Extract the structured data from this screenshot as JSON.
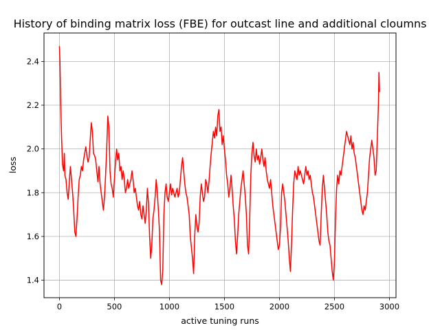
{
  "chart_data": {
    "type": "line",
    "title": "History of binding matrix loss (FBE) for outcast line and additional cloumns",
    "xlabel": "active tuning runs",
    "ylabel": "loss",
    "xlim": [
      -140,
      3060
    ],
    "ylim": [
      1.32,
      2.53
    ],
    "x_ticks": [
      0,
      500,
      1000,
      1500,
      2000,
      2500,
      3000
    ],
    "y_ticks": [
      1.4,
      1.6,
      1.8,
      2.0,
      2.2,
      2.4
    ],
    "x_tick_labels": [
      "0",
      "500",
      "1000",
      "1500",
      "2000",
      "2500",
      "3000"
    ],
    "y_tick_labels": [
      "1.4",
      "1.6",
      "1.8",
      "2.0",
      "2.2",
      "2.4"
    ],
    "grid": true,
    "legend": "none",
    "series": [
      {
        "color": "#ff0000",
        "points": [
          [
            0,
            2.47
          ],
          [
            5,
            2.4
          ],
          [
            12,
            2.2
          ],
          [
            20,
            2.05
          ],
          [
            28,
            1.93
          ],
          [
            38,
            1.9
          ],
          [
            45,
            1.98
          ],
          [
            50,
            1.88
          ],
          [
            60,
            1.86
          ],
          [
            70,
            1.8
          ],
          [
            80,
            1.77
          ],
          [
            90,
            1.85
          ],
          [
            100,
            1.92
          ],
          [
            110,
            1.86
          ],
          [
            120,
            1.8
          ],
          [
            130,
            1.72
          ],
          [
            140,
            1.62
          ],
          [
            150,
            1.6
          ],
          [
            160,
            1.68
          ],
          [
            170,
            1.78
          ],
          [
            180,
            1.86
          ],
          [
            190,
            1.88
          ],
          [
            200,
            1.92
          ],
          [
            210,
            1.9
          ],
          [
            220,
            1.95
          ],
          [
            230,
            1.98
          ],
          [
            240,
            2.01
          ],
          [
            250,
            1.97
          ],
          [
            260,
            1.94
          ],
          [
            270,
            1.96
          ],
          [
            280,
            2.04
          ],
          [
            290,
            2.12
          ],
          [
            300,
            2.08
          ],
          [
            310,
            1.98
          ],
          [
            320,
            1.97
          ],
          [
            330,
            1.95
          ],
          [
            340,
            1.9
          ],
          [
            350,
            1.85
          ],
          [
            360,
            1.92
          ],
          [
            370,
            1.84
          ],
          [
            380,
            1.8
          ],
          [
            390,
            1.76
          ],
          [
            400,
            1.72
          ],
          [
            410,
            1.78
          ],
          [
            420,
            1.88
          ],
          [
            430,
            2.0
          ],
          [
            440,
            2.15
          ],
          [
            450,
            2.1
          ],
          [
            460,
            1.9
          ],
          [
            470,
            1.84
          ],
          [
            480,
            1.82
          ],
          [
            490,
            1.78
          ],
          [
            500,
            1.86
          ],
          [
            510,
            1.94
          ],
          [
            520,
            2.0
          ],
          [
            530,
            1.95
          ],
          [
            540,
            1.98
          ],
          [
            550,
            1.9
          ],
          [
            560,
            1.92
          ],
          [
            570,
            1.86
          ],
          [
            580,
            1.9
          ],
          [
            590,
            1.86
          ],
          [
            600,
            1.8
          ],
          [
            610,
            1.82
          ],
          [
            620,
            1.86
          ],
          [
            630,
            1.82
          ],
          [
            640,
            1.84
          ],
          [
            650,
            1.86
          ],
          [
            660,
            1.9
          ],
          [
            670,
            1.86
          ],
          [
            680,
            1.8
          ],
          [
            690,
            1.82
          ],
          [
            700,
            1.78
          ],
          [
            710,
            1.74
          ],
          [
            720,
            1.72
          ],
          [
            730,
            1.76
          ],
          [
            740,
            1.7
          ],
          [
            750,
            1.68
          ],
          [
            760,
            1.74
          ],
          [
            770,
            1.7
          ],
          [
            780,
            1.66
          ],
          [
            790,
            1.72
          ],
          [
            800,
            1.82
          ],
          [
            810,
            1.75
          ],
          [
            820,
            1.6
          ],
          [
            830,
            1.5
          ],
          [
            840,
            1.56
          ],
          [
            850,
            1.68
          ],
          [
            860,
            1.72
          ],
          [
            870,
            1.78
          ],
          [
            880,
            1.86
          ],
          [
            890,
            1.8
          ],
          [
            900,
            1.72
          ],
          [
            910,
            1.62
          ],
          [
            920,
            1.4
          ],
          [
            930,
            1.38
          ],
          [
            940,
            1.45
          ],
          [
            950,
            1.7
          ],
          [
            960,
            1.8
          ],
          [
            970,
            1.84
          ],
          [
            980,
            1.78
          ],
          [
            990,
            1.76
          ],
          [
            1000,
            1.8
          ],
          [
            1010,
            1.84
          ],
          [
            1020,
            1.79
          ],
          [
            1030,
            1.82
          ],
          [
            1040,
            1.8
          ],
          [
            1050,
            1.78
          ],
          [
            1060,
            1.8
          ],
          [
            1070,
            1.82
          ],
          [
            1080,
            1.78
          ],
          [
            1090,
            1.8
          ],
          [
            1100,
            1.86
          ],
          [
            1110,
            1.92
          ],
          [
            1120,
            1.96
          ],
          [
            1130,
            1.9
          ],
          [
            1140,
            1.84
          ],
          [
            1150,
            1.8
          ],
          [
            1160,
            1.78
          ],
          [
            1170,
            1.74
          ],
          [
            1180,
            1.7
          ],
          [
            1190,
            1.6
          ],
          [
            1200,
            1.55
          ],
          [
            1210,
            1.5
          ],
          [
            1220,
            1.43
          ],
          [
            1230,
            1.6
          ],
          [
            1240,
            1.7
          ],
          [
            1250,
            1.65
          ],
          [
            1260,
            1.62
          ],
          [
            1270,
            1.66
          ],
          [
            1280,
            1.78
          ],
          [
            1290,
            1.84
          ],
          [
            1300,
            1.8
          ],
          [
            1310,
            1.76
          ],
          [
            1320,
            1.78
          ],
          [
            1330,
            1.86
          ],
          [
            1340,
            1.84
          ],
          [
            1350,
            1.8
          ],
          [
            1360,
            1.85
          ],
          [
            1370,
            1.92
          ],
          [
            1380,
            1.98
          ],
          [
            1390,
            2.03
          ],
          [
            1400,
            2.08
          ],
          [
            1410,
            2.05
          ],
          [
            1420,
            2.1
          ],
          [
            1430,
            2.06
          ],
          [
            1440,
            2.15
          ],
          [
            1450,
            2.18
          ],
          [
            1460,
            2.08
          ],
          [
            1470,
            2.1
          ],
          [
            1480,
            2.02
          ],
          [
            1490,
            2.06
          ],
          [
            1500,
            2.0
          ],
          [
            1510,
            1.95
          ],
          [
            1520,
            1.88
          ],
          [
            1530,
            1.84
          ],
          [
            1540,
            1.78
          ],
          [
            1550,
            1.82
          ],
          [
            1560,
            1.88
          ],
          [
            1570,
            1.82
          ],
          [
            1580,
            1.74
          ],
          [
            1590,
            1.68
          ],
          [
            1600,
            1.58
          ],
          [
            1610,
            1.52
          ],
          [
            1620,
            1.6
          ],
          [
            1630,
            1.7
          ],
          [
            1640,
            1.76
          ],
          [
            1650,
            1.82
          ],
          [
            1660,
            1.86
          ],
          [
            1670,
            1.9
          ],
          [
            1680,
            1.84
          ],
          [
            1690,
            1.78
          ],
          [
            1700,
            1.7
          ],
          [
            1710,
            1.56
          ],
          [
            1720,
            1.52
          ],
          [
            1730,
            1.68
          ],
          [
            1740,
            1.88
          ],
          [
            1750,
            1.98
          ],
          [
            1760,
            2.03
          ],
          [
            1770,
            1.97
          ],
          [
            1780,
            1.94
          ],
          [
            1790,
            2.0
          ],
          [
            1800,
            1.95
          ],
          [
            1810,
            1.97
          ],
          [
            1820,
            1.93
          ],
          [
            1830,
            1.96
          ],
          [
            1840,
            2.0
          ],
          [
            1850,
            1.95
          ],
          [
            1860,
            1.92
          ],
          [
            1870,
            1.96
          ],
          [
            1880,
            1.9
          ],
          [
            1890,
            1.86
          ],
          [
            1900,
            1.84
          ],
          [
            1910,
            1.82
          ],
          [
            1920,
            1.86
          ],
          [
            1930,
            1.8
          ],
          [
            1940,
            1.74
          ],
          [
            1950,
            1.7
          ],
          [
            1960,
            1.66
          ],
          [
            1970,
            1.62
          ],
          [
            1980,
            1.58
          ],
          [
            1990,
            1.54
          ],
          [
            2000,
            1.56
          ],
          [
            2010,
            1.64
          ],
          [
            2020,
            1.8
          ],
          [
            2030,
            1.84
          ],
          [
            2040,
            1.8
          ],
          [
            2050,
            1.76
          ],
          [
            2060,
            1.7
          ],
          [
            2070,
            1.64
          ],
          [
            2080,
            1.58
          ],
          [
            2090,
            1.5
          ],
          [
            2100,
            1.44
          ],
          [
            2110,
            1.56
          ],
          [
            2120,
            1.72
          ],
          [
            2130,
            1.84
          ],
          [
            2140,
            1.9
          ],
          [
            2150,
            1.88
          ],
          [
            2160,
            1.86
          ],
          [
            2170,
            1.92
          ],
          [
            2180,
            1.88
          ],
          [
            2190,
            1.9
          ],
          [
            2200,
            1.88
          ],
          [
            2210,
            1.86
          ],
          [
            2220,
            1.84
          ],
          [
            2230,
            1.88
          ],
          [
            2240,
            1.92
          ],
          [
            2250,
            1.88
          ],
          [
            2260,
            1.9
          ],
          [
            2270,
            1.86
          ],
          [
            2280,
            1.88
          ],
          [
            2290,
            1.84
          ],
          [
            2300,
            1.8
          ],
          [
            2310,
            1.78
          ],
          [
            2320,
            1.74
          ],
          [
            2330,
            1.7
          ],
          [
            2340,
            1.66
          ],
          [
            2350,
            1.62
          ],
          [
            2360,
            1.58
          ],
          [
            2370,
            1.56
          ],
          [
            2380,
            1.7
          ],
          [
            2390,
            1.82
          ],
          [
            2400,
            1.88
          ],
          [
            2410,
            1.82
          ],
          [
            2420,
            1.76
          ],
          [
            2430,
            1.7
          ],
          [
            2440,
            1.62
          ],
          [
            2450,
            1.58
          ],
          [
            2460,
            1.56
          ],
          [
            2470,
            1.5
          ],
          [
            2480,
            1.44
          ],
          [
            2490,
            1.4
          ],
          [
            2500,
            1.48
          ],
          [
            2510,
            1.68
          ],
          [
            2520,
            1.82
          ],
          [
            2530,
            1.88
          ],
          [
            2540,
            1.84
          ],
          [
            2550,
            1.9
          ],
          [
            2560,
            1.88
          ],
          [
            2570,
            1.92
          ],
          [
            2580,
            1.96
          ],
          [
            2590,
            2.0
          ],
          [
            2600,
            2.04
          ],
          [
            2610,
            2.08
          ],
          [
            2620,
            2.06
          ],
          [
            2630,
            2.04
          ],
          [
            2640,
            2.02
          ],
          [
            2650,
            2.06
          ],
          [
            2660,
            2.0
          ],
          [
            2670,
            2.03
          ],
          [
            2680,
            1.98
          ],
          [
            2690,
            1.96
          ],
          [
            2700,
            1.92
          ],
          [
            2710,
            1.88
          ],
          [
            2720,
            1.84
          ],
          [
            2730,
            1.8
          ],
          [
            2740,
            1.76
          ],
          [
            2750,
            1.72
          ],
          [
            2760,
            1.7
          ],
          [
            2770,
            1.74
          ],
          [
            2780,
            1.72
          ],
          [
            2790,
            1.76
          ],
          [
            2800,
            1.8
          ],
          [
            2810,
            1.88
          ],
          [
            2820,
            1.96
          ],
          [
            2830,
            2.0
          ],
          [
            2840,
            2.04
          ],
          [
            2850,
            2.0
          ],
          [
            2860,
            1.96
          ],
          [
            2870,
            1.88
          ],
          [
            2880,
            1.9
          ],
          [
            2890,
            2.05
          ],
          [
            2900,
            2.2
          ],
          [
            2905,
            2.35
          ],
          [
            2910,
            2.26
          ]
        ]
      }
    ]
  }
}
